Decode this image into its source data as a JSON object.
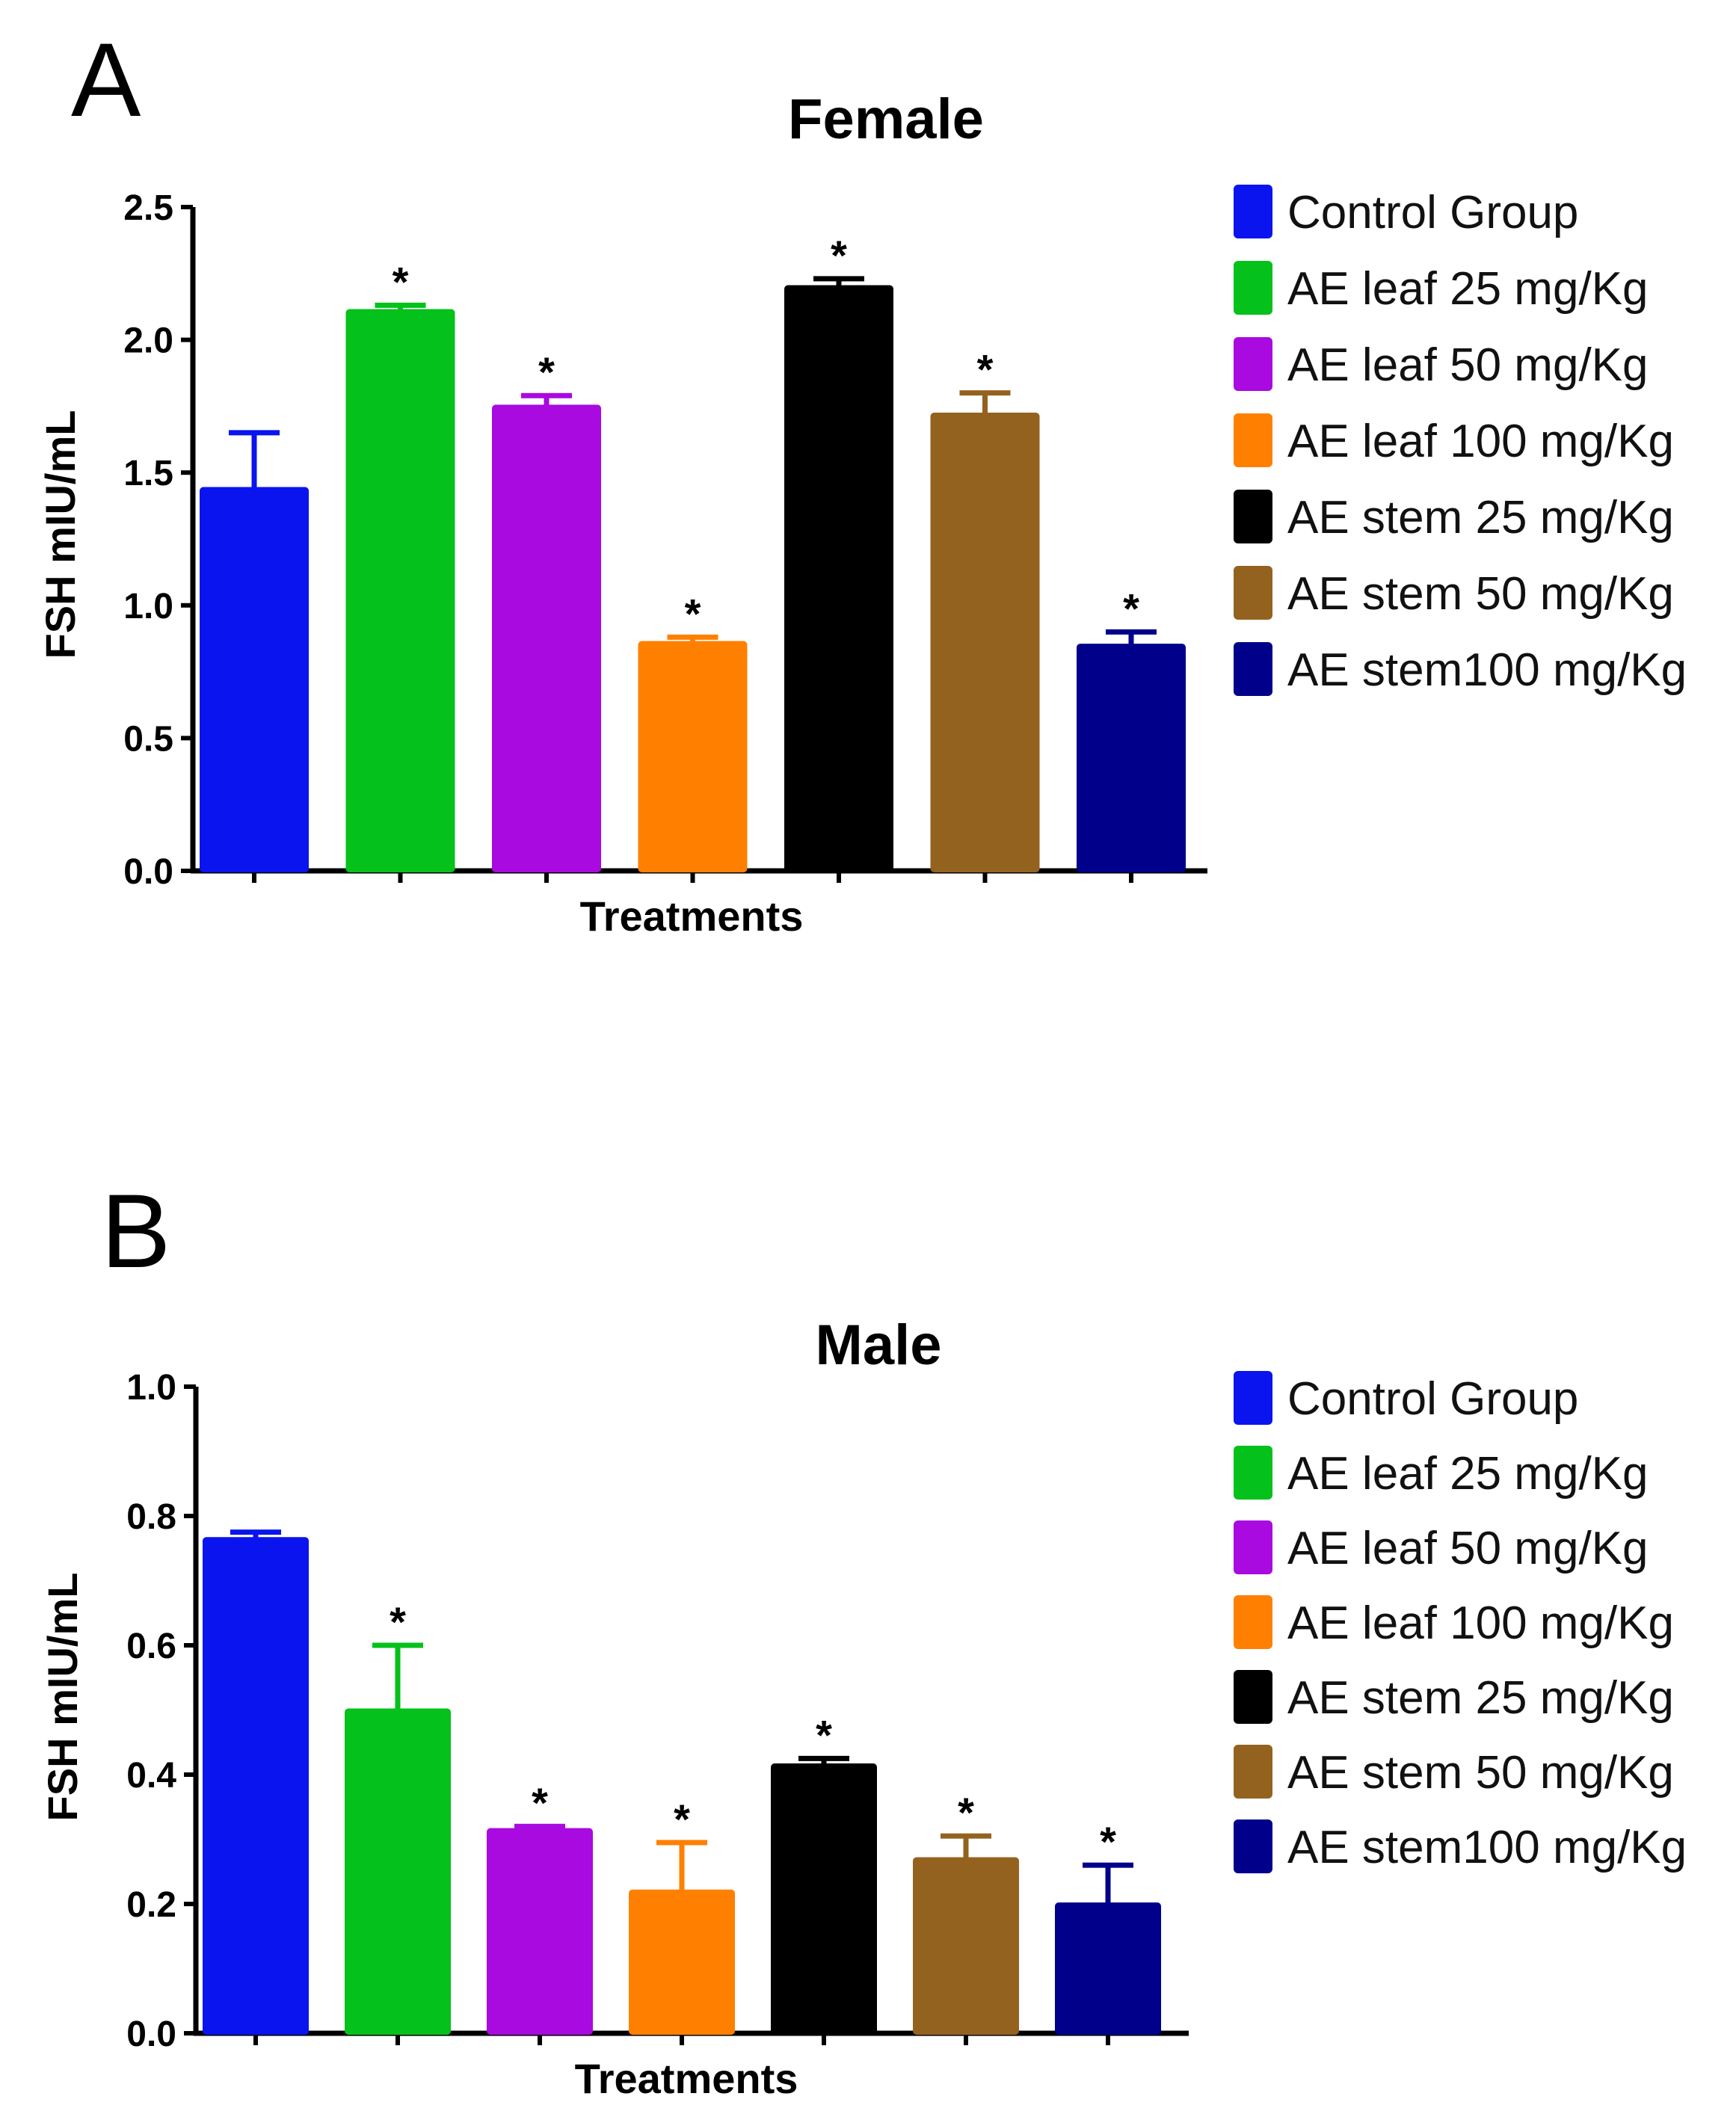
{
  "chart_data": [
    {
      "panel": "A",
      "type": "bar",
      "title": "Female",
      "xlabel": "Treatments",
      "ylabel": "FSH mIU/mL",
      "ylim": [
        0,
        2.5
      ],
      "yticks": [
        "0.0",
        "0.5",
        "1.0",
        "1.5",
        "2.0",
        "2.5"
      ],
      "categories": [
        "Control Group",
        "AE leaf 25 mg/Kg",
        "AE leaf 50 mg/Kg",
        "AE leaf 100 mg/Kg",
        "AE stem 25 mg/Kg",
        "AE stem 50 mg/Kg",
        "AE stem100 mg/Kg"
      ],
      "values": [
        1.44,
        2.11,
        1.75,
        0.86,
        2.2,
        1.72,
        0.85
      ],
      "errors": [
        0.21,
        0.02,
        0.04,
        0.02,
        0.03,
        0.08,
        0.05
      ],
      "significance": [
        "",
        "*",
        "*",
        "*",
        "*",
        "*",
        "*"
      ],
      "colors": [
        "#0a14ee",
        "#05c11b",
        "#a80ae0",
        "#ff8000",
        "#000000",
        "#94621f",
        "#00008b"
      ],
      "legend": [
        "Control Group",
        "AE leaf 25 mg/Kg",
        "AE leaf 50 mg/Kg",
        "AE leaf 100 mg/Kg",
        "AE stem 25 mg/Kg",
        "AE stem 50 mg/Kg",
        "AE stem100 mg/Kg"
      ],
      "legend_position": "right"
    },
    {
      "panel": "B",
      "type": "bar",
      "title": "Male",
      "xlabel": "Treatments",
      "ylabel": "FSH mIU/mL",
      "ylim": [
        0,
        1.0
      ],
      "yticks": [
        "0.0",
        "0.2",
        "0.4",
        "0.6",
        "0.8",
        "1.0"
      ],
      "categories": [
        "Control Group",
        "AE leaf 25 mg/Kg",
        "AE leaf 50 mg/Kg",
        "AE leaf 100 mg/Kg",
        "AE stem 25 mg/Kg",
        "AE stem 50 mg/Kg",
        "AE stem100 mg/Kg"
      ],
      "values": [
        0.765,
        0.5,
        0.315,
        0.22,
        0.415,
        0.27,
        0.2
      ],
      "errors": [
        0.01,
        0.1,
        0.005,
        0.075,
        0.01,
        0.035,
        0.06
      ],
      "significance": [
        "",
        "*",
        "*",
        "*",
        "*",
        "*",
        "*"
      ],
      "colors": [
        "#0a14ee",
        "#05c11b",
        "#a80ae0",
        "#ff8000",
        "#000000",
        "#94621f",
        "#00008b"
      ],
      "legend": [
        "Control Group",
        "AE leaf 25 mg/Kg",
        "AE leaf 50 mg/Kg",
        "AE leaf 100 mg/Kg",
        "AE stem 25 mg/Kg",
        "AE stem 50 mg/Kg",
        "AE stem100 mg/Kg"
      ],
      "legend_position": "right"
    }
  ]
}
